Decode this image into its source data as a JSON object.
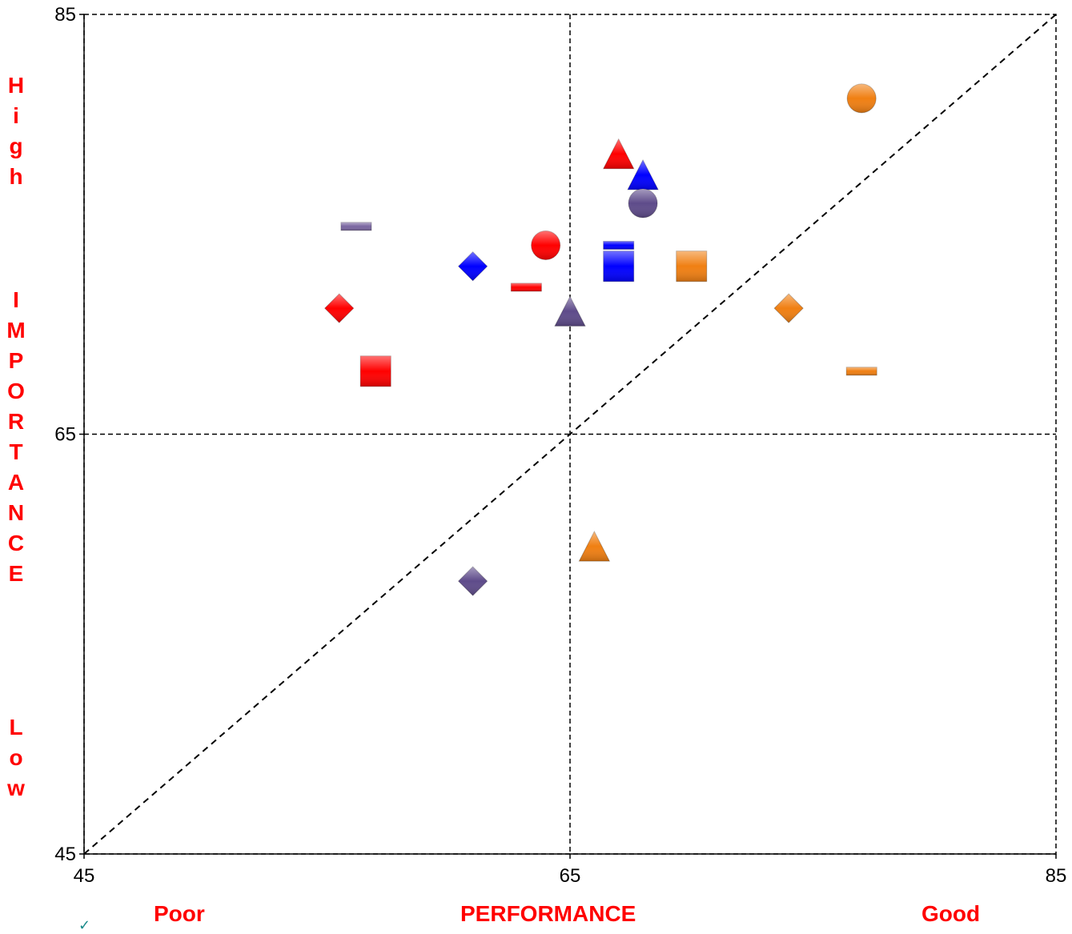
{
  "chart_data": {
    "type": "scatter",
    "title": "",
    "xlabel": "PERFORMANCE",
    "xlabel_left": "Poor",
    "xlabel_right": "Good",
    "ylabel_high": "High",
    "ylabel": "IMPORTANCE",
    "ylabel_low": "Low",
    "xlim": [
      45,
      85
    ],
    "ylim": [
      45,
      85
    ],
    "x_ticks": [
      "45",
      "65",
      "85"
    ],
    "y_ticks": [
      "45",
      "65",
      "85"
    ],
    "midlines": {
      "x": 65,
      "y": 65
    },
    "diagonal": [
      [
        45,
        45
      ],
      [
        85,
        85
      ]
    ],
    "grid": false,
    "points": [
      {
        "x": 77.0,
        "y": 81.0,
        "shape": "circle",
        "color": "#f07f12"
      },
      {
        "x": 67.0,
        "y": 78.3,
        "shape": "triangle",
        "color": "#ff0000"
      },
      {
        "x": 68.0,
        "y": 77.3,
        "shape": "triangle",
        "color": "#0000ff"
      },
      {
        "x": 68.0,
        "y": 76.0,
        "shape": "circle",
        "color": "#5e4b8a"
      },
      {
        "x": 56.2,
        "y": 74.9,
        "shape": "dash",
        "color": "#7a66a0"
      },
      {
        "x": 64.0,
        "y": 74.0,
        "shape": "circle",
        "color": "#ff0000"
      },
      {
        "x": 67.0,
        "y": 74.0,
        "shape": "dash",
        "color": "#0000ff"
      },
      {
        "x": 61.0,
        "y": 73.0,
        "shape": "diamond",
        "color": "#0000ff"
      },
      {
        "x": 67.0,
        "y": 73.0,
        "shape": "square",
        "color": "#0000ff"
      },
      {
        "x": 70.0,
        "y": 73.0,
        "shape": "square",
        "color": "#f07f12"
      },
      {
        "x": 63.2,
        "y": 72.0,
        "shape": "dash",
        "color": "#ff0000"
      },
      {
        "x": 55.5,
        "y": 71.0,
        "shape": "diamond",
        "color": "#ff0000"
      },
      {
        "x": 65.0,
        "y": 70.8,
        "shape": "triangle",
        "color": "#5e4b8a"
      },
      {
        "x": 74.0,
        "y": 71.0,
        "shape": "diamond",
        "color": "#f07f12"
      },
      {
        "x": 57.0,
        "y": 68.0,
        "shape": "square",
        "color": "#ff0000"
      },
      {
        "x": 77.0,
        "y": 68.0,
        "shape": "dash",
        "color": "#f07f12"
      },
      {
        "x": 66.0,
        "y": 59.6,
        "shape": "triangle",
        "color": "#f07f12"
      },
      {
        "x": 61.0,
        "y": 58.0,
        "shape": "diamond",
        "color": "#5e4b8a"
      }
    ]
  }
}
